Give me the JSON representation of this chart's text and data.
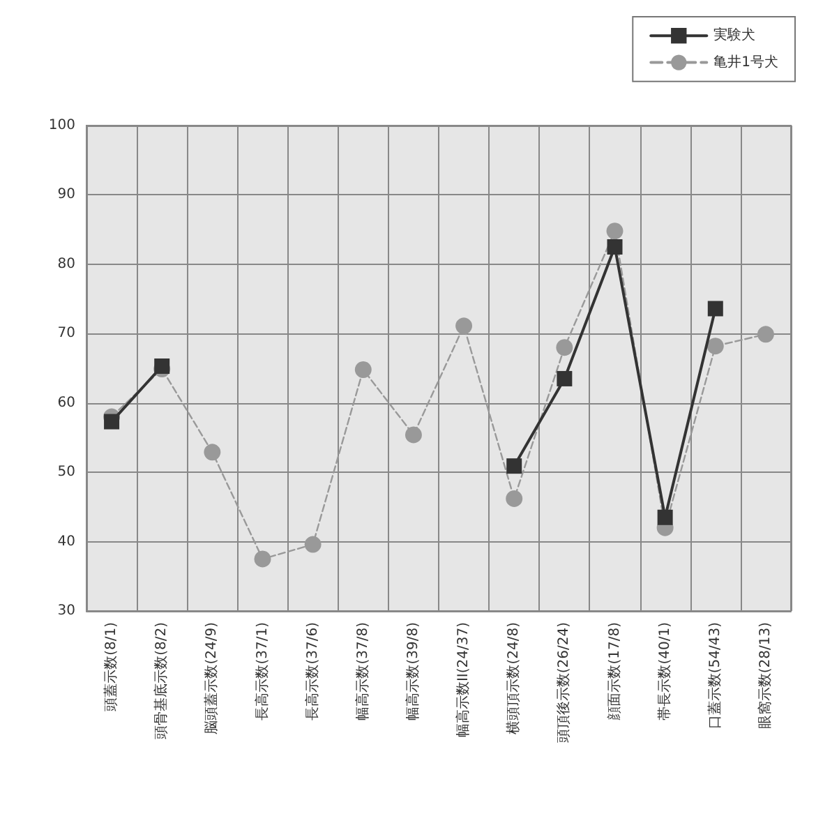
{
  "chart_data": {
    "type": "line",
    "categories": [
      "頭蓋示数(8/1)",
      "頭骨基底示数(8/2)",
      "脳頭蓋示数(24/9)",
      "長高示数(37/1)",
      "長高示数(37/6)",
      "幅高示数(37/8)",
      "幅高示数(39/8)",
      "幅高示数II(24/37)",
      "横頭頂示数(24/8)",
      "頭頂後示数(26/24)",
      "顔面示数(17/8)",
      "帯長示数(40/1)",
      "口蓋示数(54/43)",
      "眼窩示数(28/13)"
    ],
    "series": [
      {
        "name": "実験犬",
        "color": "#333333",
        "marker": "square",
        "line_style": "solid",
        "values": [
          57.3,
          65.3,
          null,
          null,
          null,
          null,
          null,
          null,
          50.9,
          63.5,
          82.5,
          43.5,
          73.6,
          null
        ]
      },
      {
        "name": "亀井1号犬",
        "color": "#999999",
        "marker": "circle",
        "line_style": "dashed",
        "values": [
          58,
          64.9,
          52.9,
          37.5,
          39.6,
          64.8,
          55.4,
          71.1,
          46.2,
          68,
          84.8,
          42,
          68.2,
          69.9
        ]
      }
    ],
    "ylim": [
      30,
      100
    ],
    "yticks": [
      30,
      40,
      50,
      60,
      70,
      80,
      90,
      100
    ],
    "grid": true,
    "legend": "top right"
  }
}
